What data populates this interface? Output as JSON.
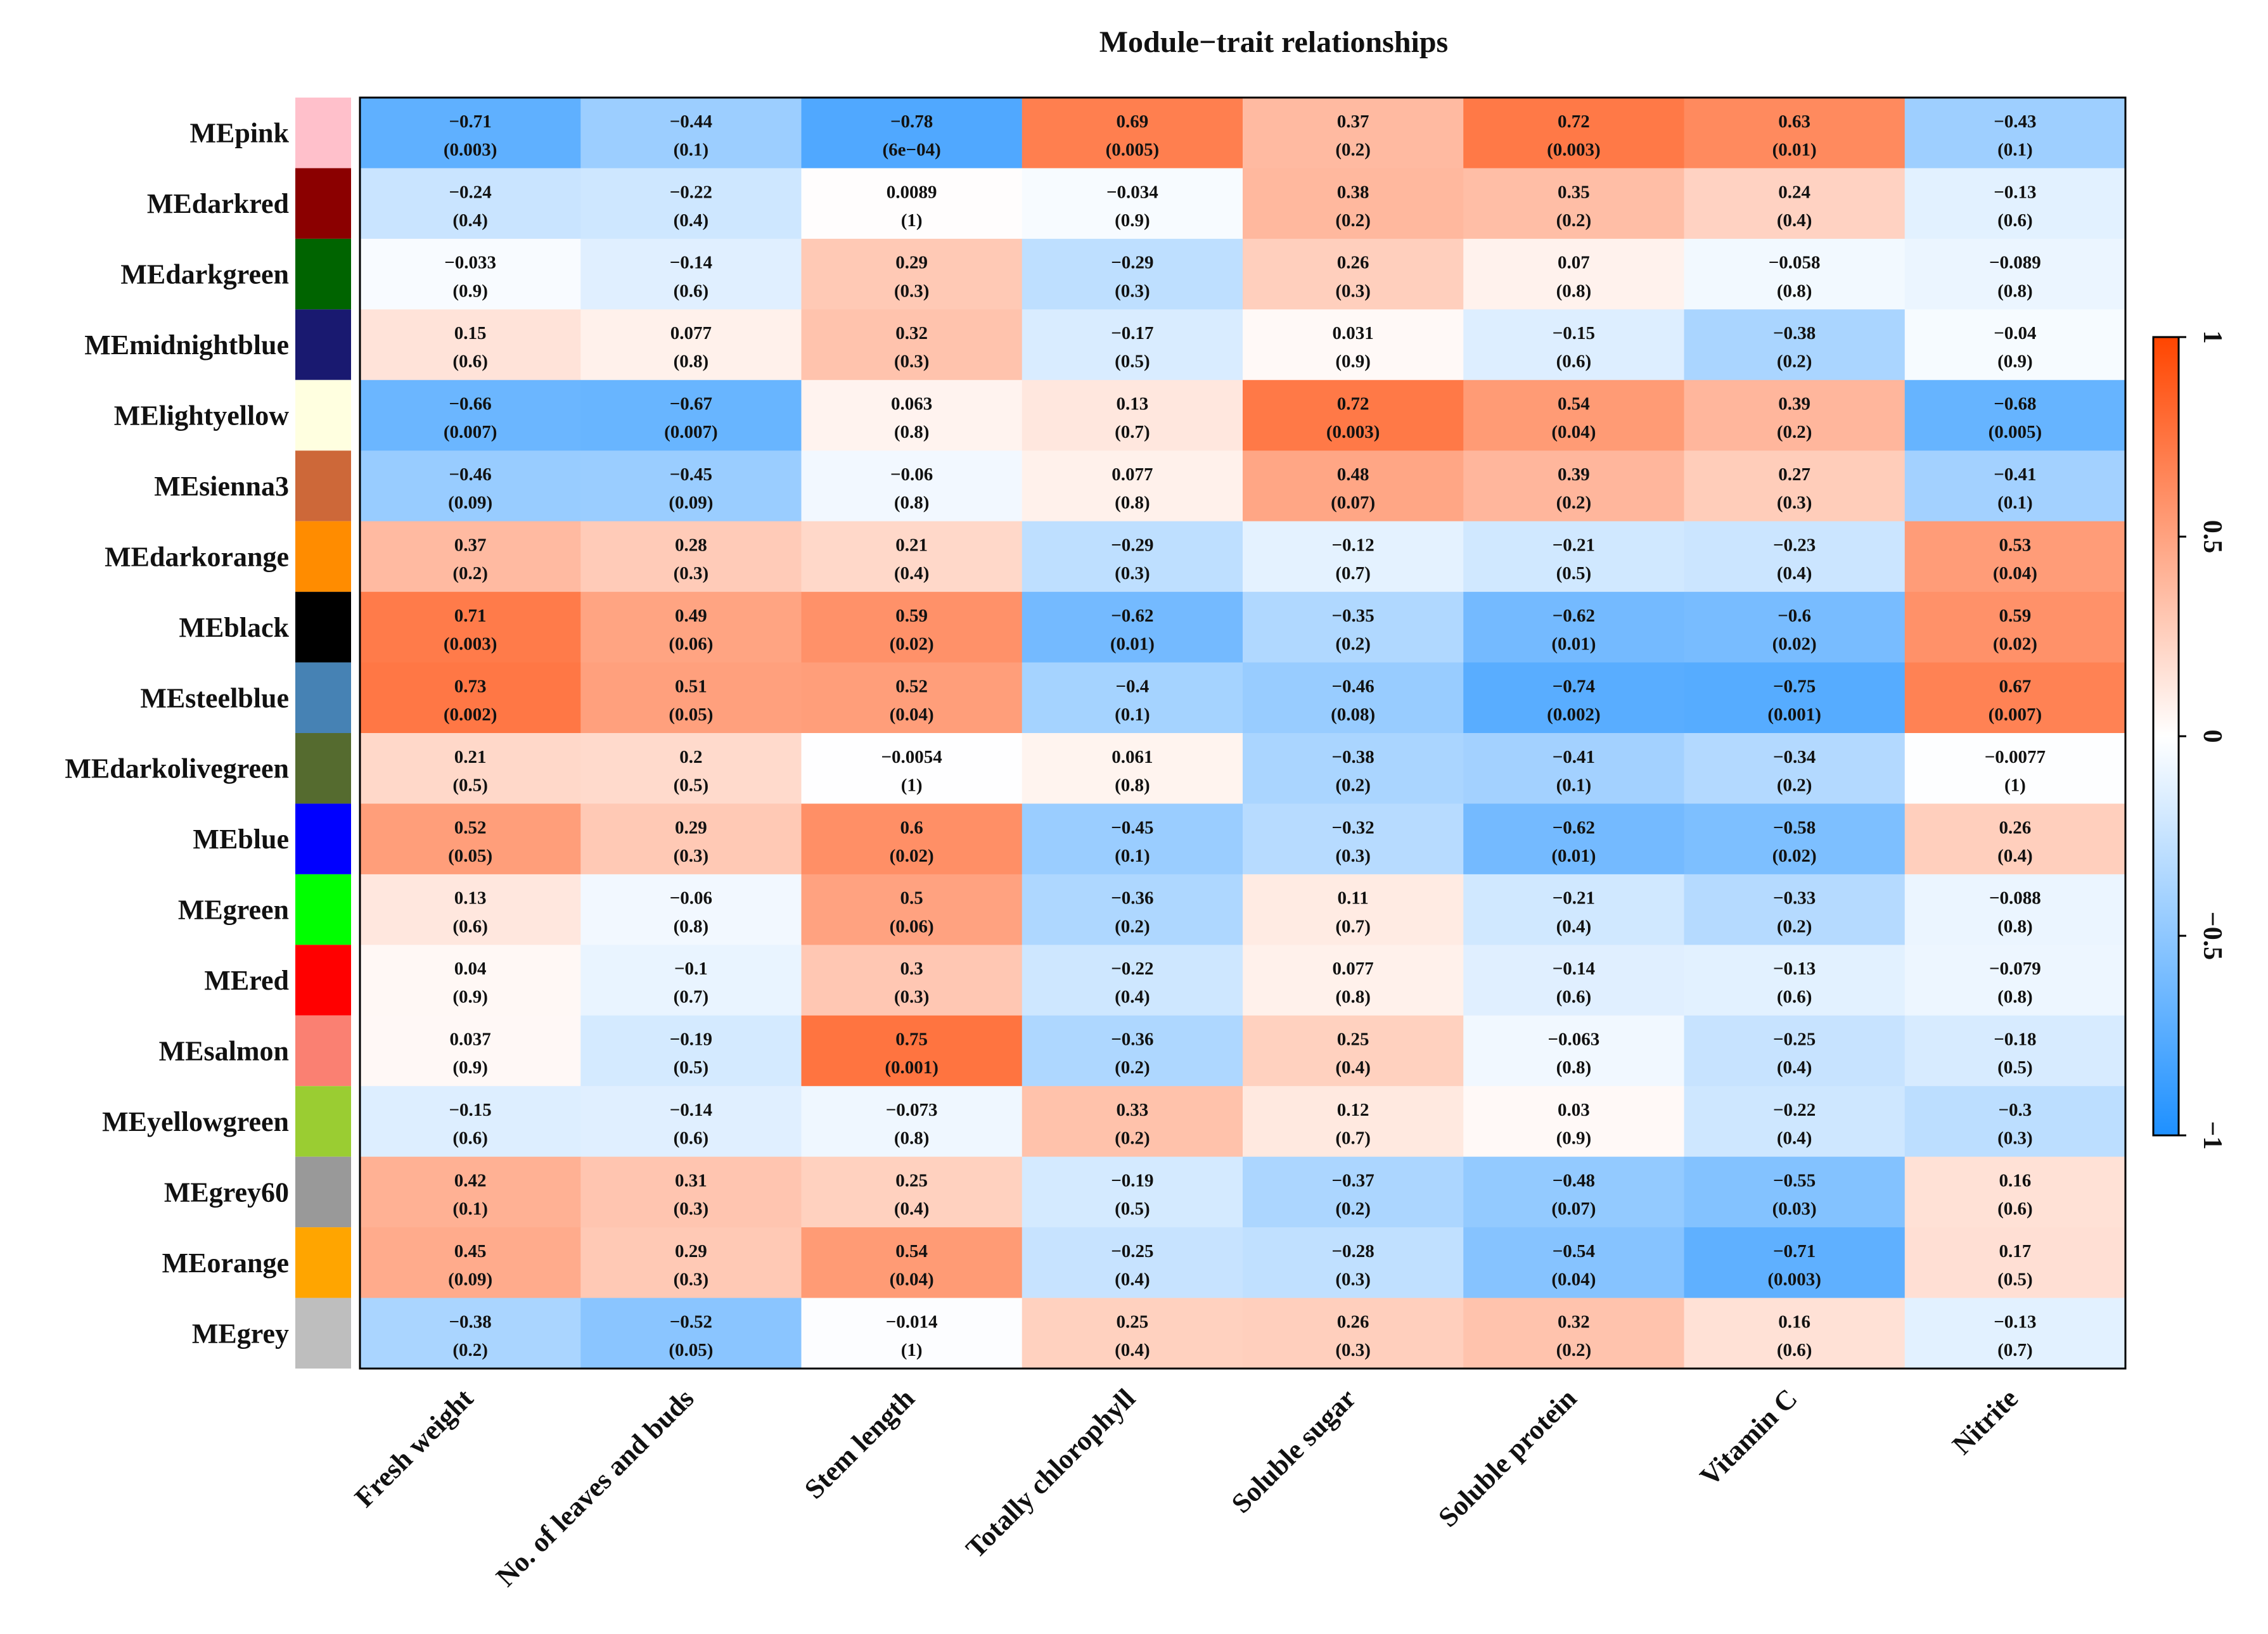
{
  "chart_data": {
    "type": "heatmap",
    "title": "Module−trait relationships",
    "rows": [
      {
        "name": "MEpink",
        "color": "#FFC0CB"
      },
      {
        "name": "MEdarkred",
        "color": "#8B0000"
      },
      {
        "name": "MEdarkgreen",
        "color": "#006400"
      },
      {
        "name": "MEmidnightblue",
        "color": "#191970"
      },
      {
        "name": "MElightyellow",
        "color": "#FFFFE0"
      },
      {
        "name": "MEsienna3",
        "color": "#CD6839"
      },
      {
        "name": "MEdarkorange",
        "color": "#FF8C00"
      },
      {
        "name": "MEblack",
        "color": "#000000"
      },
      {
        "name": "MEsteelblue",
        "color": "#4682B4"
      },
      {
        "name": "MEdarkolivegreen",
        "color": "#556B2F"
      },
      {
        "name": "MEblue",
        "color": "#0000FF"
      },
      {
        "name": "MEgreen",
        "color": "#00FF00"
      },
      {
        "name": "MEred",
        "color": "#FF0000"
      },
      {
        "name": "MEsalmon",
        "color": "#FA8072"
      },
      {
        "name": "MEyellowgreen",
        "color": "#9ACD32"
      },
      {
        "name": "MEgrey60",
        "color": "#999999"
      },
      {
        "name": "MEorange",
        "color": "#FFA500"
      },
      {
        "name": "MEgrey",
        "color": "#BEBEBE"
      }
    ],
    "columns": [
      "Fresh weight",
      "No. of leaves and buds",
      "Stem length",
      "Totally chlorophyll",
      "Soluble sugar",
      "Soluble protein",
      "Vitamin C",
      "Nitrite"
    ],
    "values": [
      [
        -0.71,
        -0.44,
        -0.78,
        0.69,
        0.37,
        0.72,
        0.63,
        -0.43
      ],
      [
        -0.24,
        -0.22,
        0.0089,
        -0.034,
        0.38,
        0.35,
        0.24,
        -0.13
      ],
      [
        -0.033,
        -0.14,
        0.29,
        -0.29,
        0.26,
        0.07,
        -0.058,
        -0.089
      ],
      [
        0.15,
        0.077,
        0.32,
        -0.17,
        0.031,
        -0.15,
        -0.38,
        -0.04
      ],
      [
        -0.66,
        -0.67,
        0.063,
        0.13,
        0.72,
        0.54,
        0.39,
        -0.68
      ],
      [
        -0.46,
        -0.45,
        -0.06,
        0.077,
        0.48,
        0.39,
        0.27,
        -0.41
      ],
      [
        0.37,
        0.28,
        0.21,
        -0.29,
        -0.12,
        -0.21,
        -0.23,
        0.53
      ],
      [
        0.71,
        0.49,
        0.59,
        -0.62,
        -0.35,
        -0.62,
        -0.6,
        0.59
      ],
      [
        0.73,
        0.51,
        0.52,
        -0.4,
        -0.46,
        -0.74,
        -0.75,
        0.67
      ],
      [
        0.21,
        0.2,
        -0.0054,
        0.061,
        -0.38,
        -0.41,
        -0.34,
        -0.0077
      ],
      [
        0.52,
        0.29,
        0.6,
        -0.45,
        -0.32,
        -0.62,
        -0.58,
        0.26
      ],
      [
        0.13,
        -0.06,
        0.5,
        -0.36,
        0.11,
        -0.21,
        -0.33,
        -0.088
      ],
      [
        0.04,
        -0.1,
        0.3,
        -0.22,
        0.077,
        -0.14,
        -0.13,
        -0.079
      ],
      [
        0.037,
        -0.19,
        0.75,
        -0.36,
        0.25,
        -0.063,
        -0.25,
        -0.18
      ],
      [
        -0.15,
        -0.14,
        -0.073,
        0.33,
        0.12,
        0.03,
        -0.22,
        -0.3
      ],
      [
        0.42,
        0.31,
        0.25,
        -0.19,
        -0.37,
        -0.48,
        -0.55,
        0.16
      ],
      [
        0.45,
        0.29,
        0.54,
        -0.25,
        -0.28,
        -0.54,
        -0.71,
        0.17
      ],
      [
        -0.38,
        -0.52,
        -0.014,
        0.25,
        0.26,
        0.32,
        0.16,
        -0.13
      ]
    ],
    "pvalues": [
      [
        "0.003",
        "0.1",
        "6e−04",
        "0.005",
        "0.2",
        "0.003",
        "0.01",
        "0.1"
      ],
      [
        "0.4",
        "0.4",
        "1",
        "0.9",
        "0.2",
        "0.2",
        "0.4",
        "0.6"
      ],
      [
        "0.9",
        "0.6",
        "0.3",
        "0.3",
        "0.3",
        "0.8",
        "0.8",
        "0.8"
      ],
      [
        "0.6",
        "0.8",
        "0.3",
        "0.5",
        "0.9",
        "0.6",
        "0.2",
        "0.9"
      ],
      [
        "0.007",
        "0.007",
        "0.8",
        "0.7",
        "0.003",
        "0.04",
        "0.2",
        "0.005"
      ],
      [
        "0.09",
        "0.09",
        "0.8",
        "0.8",
        "0.07",
        "0.2",
        "0.3",
        "0.1"
      ],
      [
        "0.2",
        "0.3",
        "0.4",
        "0.3",
        "0.7",
        "0.5",
        "0.4",
        "0.04"
      ],
      [
        "0.003",
        "0.06",
        "0.02",
        "0.01",
        "0.2",
        "0.01",
        "0.02",
        "0.02"
      ],
      [
        "0.002",
        "0.05",
        "0.04",
        "0.1",
        "0.08",
        "0.002",
        "0.001",
        "0.007"
      ],
      [
        "0.5",
        "0.5",
        "1",
        "0.8",
        "0.2",
        "0.1",
        "0.2",
        "1"
      ],
      [
        "0.05",
        "0.3",
        "0.02",
        "0.1",
        "0.3",
        "0.01",
        "0.02",
        "0.4"
      ],
      [
        "0.6",
        "0.8",
        "0.06",
        "0.2",
        "0.7",
        "0.4",
        "0.2",
        "0.8"
      ],
      [
        "0.9",
        "0.7",
        "0.3",
        "0.4",
        "0.8",
        "0.6",
        "0.6",
        "0.8"
      ],
      [
        "0.9",
        "0.5",
        "0.001",
        "0.2",
        "0.4",
        "0.8",
        "0.4",
        "0.5"
      ],
      [
        "0.6",
        "0.6",
        "0.8",
        "0.2",
        "0.7",
        "0.9",
        "0.4",
        "0.3"
      ],
      [
        "0.1",
        "0.3",
        "0.4",
        "0.5",
        "0.2",
        "0.07",
        "0.03",
        "0.6"
      ],
      [
        "0.09",
        "0.3",
        "0.04",
        "0.4",
        "0.3",
        "0.04",
        "0.003",
        "0.5"
      ],
      [
        "0.2",
        "0.05",
        "1",
        "0.4",
        "0.3",
        "0.2",
        "0.6",
        "0.7"
      ]
    ],
    "color_scale": {
      "low": "#1E90FF",
      "mid": "#FFFFFF",
      "high": "#FF4500",
      "range": [
        -1,
        1
      ],
      "ticks": [
        "1",
        "0.5",
        "0",
        "−0.5",
        "−1"
      ]
    }
  }
}
